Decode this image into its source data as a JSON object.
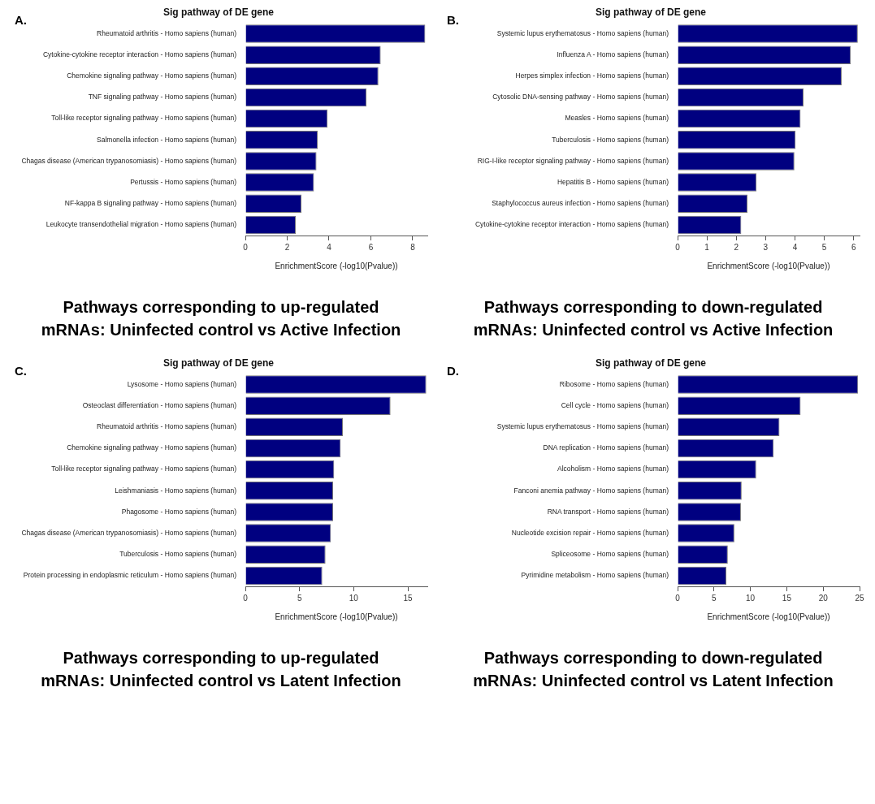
{
  "chart_data": [
    {
      "type": "bar",
      "orientation": "horizontal",
      "title": "Sig pathway of DE gene",
      "xlabel": "EnrichmentScore (-log10(Pvalue))",
      "annotations": [
        "A.",
        "Pathways corresponding to up-regulated mRNAs: Uninfected control vs Active Infection"
      ],
      "categories": [
        "Rheumatoid arthritis - Homo sapiens (human)",
        "Cytokine-cytokine receptor interaction - Homo sapiens (human)",
        "Chemokine signaling pathway - Homo sapiens (human)",
        "TNF signaling pathway - Homo sapiens (human)",
        "Toll-like receptor signaling pathway - Homo sapiens (human)",
        "Salmonella infection - Homo sapiens (human)",
        "Chagas disease (American trypanosomiasis) - Homo sapiens (human)",
        "Pertussis - Homo sapiens (human)",
        "NF-kappa B signaling pathway - Homo sapiens (human)",
        "Leukocyte transendothelial migration - Homo sapiens (human)"
      ],
      "values": [
        8.6,
        6.47,
        6.36,
        5.79,
        3.93,
        3.46,
        3.4,
        3.28,
        2.68,
        2.41
      ],
      "color": "#000080",
      "xlim": [
        0,
        8.7
      ],
      "xticks": [
        0,
        2,
        4,
        6,
        8
      ]
    },
    {
      "type": "bar",
      "orientation": "horizontal",
      "title": "Sig pathway of DE gene",
      "xlabel": "EnrichmentScore (-log10(Pvalue))",
      "annotations": [
        "B.",
        "Pathways corresponding to down-regulated mRNAs: Uninfected control vs Active Infection"
      ],
      "categories": [
        "Systemic lupus erythematosus - Homo sapiens (human)",
        "Influenza A - Homo sapiens (human)",
        "Herpes simplex infection - Homo sapiens (human)",
        "Cytosolic DNA-sensing pathway - Homo sapiens (human)",
        "Measles - Homo sapiens (human)",
        "Tuberculosis - Homo sapiens (human)",
        "RIG-I-like receptor signaling pathway - Homo sapiens (human)",
        "Hepatitis B - Homo sapiens (human)",
        "Staphylococcus aureus infection - Homo sapiens (human)",
        "Cytokine-cytokine receptor interaction - Homo sapiens (human)"
      ],
      "values": [
        6.14,
        5.9,
        5.59,
        4.29,
        4.19,
        4.02,
        3.98,
        2.69,
        2.38,
        2.17
      ],
      "color": "#000080",
      "xlim": [
        0,
        6.2
      ],
      "xticks": [
        0,
        1,
        2,
        3,
        4,
        5,
        6
      ]
    },
    {
      "type": "bar",
      "orientation": "horizontal",
      "title": "Sig pathway of DE gene",
      "xlabel": "EnrichmentScore (-log10(Pvalue))",
      "annotations": [
        "C.",
        "Pathways corresponding to up-regulated mRNAs: Uninfected control vs Latent Infection"
      ],
      "categories": [
        "Lysosome - Homo sapiens (human)",
        "Osteoclast differentiation - Homo sapiens (human)",
        "Rheumatoid arthritis - Homo sapiens (human)",
        "Chemokine signaling pathway - Homo sapiens (human)",
        "Toll-like receptor signaling pathway - Homo sapiens (human)",
        "Leishmaniasis - Homo sapiens (human)",
        "Phagosome - Homo sapiens (human)",
        "Chagas disease (American trypanosomiasis) - Homo sapiens (human)",
        "Tuberculosis - Homo sapiens (human)",
        "Protein processing in endoplasmic reticulum - Homo sapiens (human)"
      ],
      "values": [
        16.7,
        13.4,
        9.0,
        8.8,
        8.2,
        8.1,
        8.1,
        7.9,
        7.4,
        7.1
      ],
      "color": "#000080",
      "xlim": [
        0,
        16.8
      ],
      "xticks": [
        0,
        5,
        10,
        15
      ]
    },
    {
      "type": "bar",
      "orientation": "horizontal",
      "title": "Sig pathway of DE gene",
      "xlabel": "EnrichmentScore (-log10(Pvalue))",
      "annotations": [
        "D.",
        "Pathways corresponding to down-regulated mRNAs: Uninfected control vs Latent Infection"
      ],
      "categories": [
        "Ribosome - Homo sapiens (human)",
        "Cell cycle - Homo sapiens (human)",
        "Systemic lupus erythematosus - Homo sapiens (human)",
        "DNA replication - Homo sapiens (human)",
        "Alcoholism - Homo sapiens (human)",
        "Fanconi anemia pathway - Homo sapiens (human)",
        "RNA transport - Homo sapiens (human)",
        "Nucleotide excision repair - Homo sapiens (human)",
        "Spliceosome - Homo sapiens (human)",
        "Pyrimidine metabolism - Homo sapiens (human)"
      ],
      "values": [
        24.8,
        16.9,
        14.0,
        13.2,
        10.8,
        8.8,
        8.7,
        7.8,
        6.9,
        6.7
      ],
      "color": "#000080",
      "xlim": [
        0,
        25
      ],
      "xticks": [
        0,
        5,
        10,
        15,
        20,
        25
      ]
    }
  ]
}
